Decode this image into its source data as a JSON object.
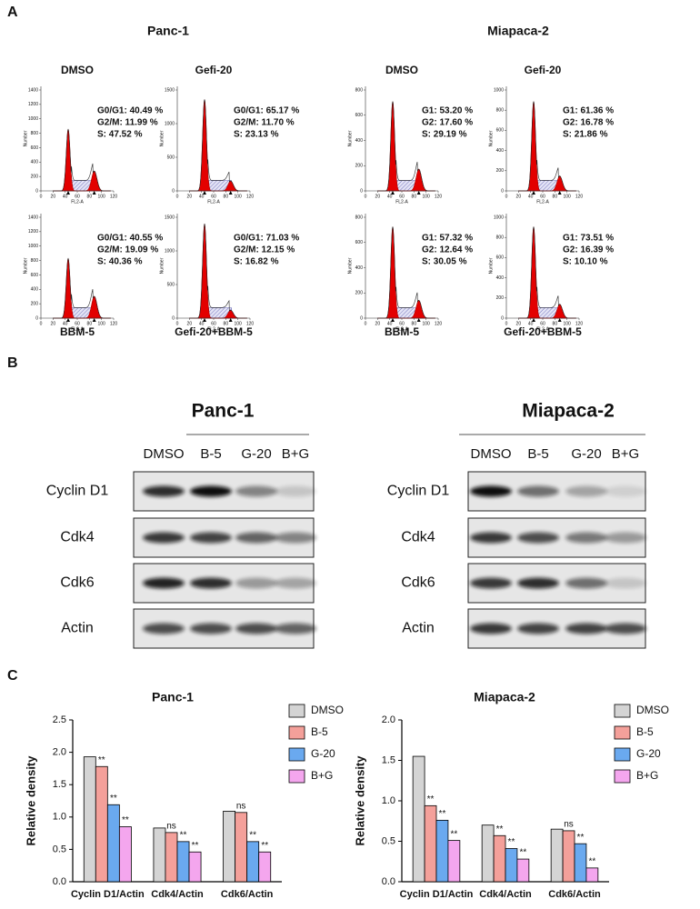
{
  "panel_labels": [
    "A",
    "B",
    "C"
  ],
  "flow": {
    "cell_lines": [
      "Panc-1",
      "Miapaca-2"
    ],
    "x_label": "FL2-A",
    "y_label": "Number",
    "xticks": [
      0,
      20,
      40,
      60,
      80,
      100,
      120
    ],
    "plots": [
      {
        "title": "DMSO",
        "stats": [
          "G0/G1: 40.49 %",
          "G2/M: 11.99 %",
          "S: 47.52 %"
        ],
        "yticks": [
          0,
          200,
          400,
          600,
          800,
          1000,
          1200,
          1400
        ]
      },
      {
        "title": "Gefi-20",
        "stats": [
          "G0/G1: 65.17 %",
          "G2/M: 11.70 %",
          "S: 23.13 %"
        ],
        "yticks": [
          0,
          500,
          1000,
          1500
        ]
      },
      {
        "title": "BBM-5",
        "stats": [
          "G0/G1: 40.55 %",
          "G2/M: 19.09 %",
          "S: 40.36 %"
        ],
        "yticks": [
          0,
          200,
          400,
          600,
          800,
          1000,
          1200,
          1400
        ]
      },
      {
        "title": "Gefi-20+BBM-5",
        "stats": [
          "G0/G1: 71.03 %",
          "G2/M: 12.15 %",
          "S: 16.82 %"
        ],
        "yticks": [
          0,
          500,
          1000,
          1500
        ]
      },
      {
        "title": "DMSO",
        "stats": [
          "G1: 53.20 %",
          "G2: 17.60 %",
          "S: 29.19 %"
        ],
        "yticks": [
          0,
          200,
          400,
          600,
          800
        ]
      },
      {
        "title": "Gefi-20",
        "stats": [
          "G1: 61.36 %",
          "G2: 16.78 %",
          "S: 21.86 %"
        ],
        "yticks": [
          0,
          200,
          400,
          600,
          800,
          1000
        ]
      },
      {
        "title": "BBM-5",
        "stats": [
          "G1: 57.32 %",
          "G2: 12.64 %",
          "S: 30.05 %"
        ],
        "yticks": [
          0,
          200,
          400,
          600,
          800
        ]
      },
      {
        "title": "Gefi-20+BBM-5",
        "stats": [
          "G1: 73.51 %",
          "G2: 16.39 %",
          "S: 10.10 %"
        ],
        "yticks": [
          0,
          200,
          400,
          600,
          800,
          1000
        ]
      }
    ]
  },
  "western": {
    "blots": [
      {
        "cell_line": "Panc-1",
        "lanes": [
          "DMSO",
          "B-5",
          "G-20",
          "B+G"
        ],
        "proteins": [
          "Cyclin D1",
          "Cdk4",
          "Cdk6",
          "Actin"
        ]
      },
      {
        "cell_line": "Miapaca-2",
        "lanes": [
          "DMSO",
          "B-5",
          "G-20",
          "B+G"
        ],
        "proteins": [
          "Cyclin D1",
          "Cdk4",
          "Cdk6",
          "Actin"
        ]
      }
    ]
  },
  "chart_data": [
    {
      "type": "bar",
      "title": "Panc-1",
      "y_label": "Relative density",
      "categories": [
        "Cyclin D1/Actin",
        "Cdk4/Actin",
        "Cdk6/Actin"
      ],
      "series": [
        {
          "name": "DMSO",
          "color": "#d4d4d4",
          "values": [
            1.93,
            0.83,
            1.09
          ]
        },
        {
          "name": "B-5",
          "color": "#f4a09a",
          "values": [
            1.78,
            0.76,
            1.07
          ],
          "significance": [
            "**",
            "ns",
            "ns"
          ]
        },
        {
          "name": "G-20",
          "color": "#6aa9ef",
          "values": [
            1.19,
            0.62,
            0.62
          ],
          "significance": [
            "**",
            "**",
            "**"
          ]
        },
        {
          "name": "B+G",
          "color": "#f4a6ee",
          "values": [
            0.85,
            0.46,
            0.46
          ],
          "significance": [
            "**",
            "**",
            "**"
          ]
        }
      ],
      "ylim": [
        0,
        2.5
      ],
      "yticks": [
        {
          "value": 0,
          "label": "0.0"
        },
        0.5,
        {
          "value": 1,
          "label": "1.0"
        },
        1.5,
        {
          "value": 2,
          "label": "2.0"
        },
        2.5
      ],
      "legend": "upper right"
    },
    {
      "type": "bar",
      "title": "Miapaca-2",
      "y_label": "Relative density",
      "categories": [
        "Cyclin D1/Actin",
        "Cdk4/Actin",
        "Cdk6/Actin"
      ],
      "series": [
        {
          "name": "DMSO",
          "color": "#d4d4d4",
          "values": [
            1.55,
            0.7,
            0.65
          ]
        },
        {
          "name": "B-5",
          "color": "#f4a09a",
          "values": [
            0.94,
            0.57,
            0.63
          ],
          "significance": [
            "**",
            "**",
            "ns"
          ]
        },
        {
          "name": "G-20",
          "color": "#6aa9ef",
          "values": [
            0.76,
            0.41,
            0.47
          ],
          "significance": [
            "**",
            "**",
            "**"
          ]
        },
        {
          "name": "B+G",
          "color": "#f4a6ee",
          "values": [
            0.51,
            0.28,
            0.17
          ],
          "significance": [
            "**",
            "**",
            "**"
          ]
        }
      ],
      "ylim": [
        0,
        2.0
      ],
      "yticks": [
        {
          "value": 0,
          "label": "0.0"
        },
        0.5,
        {
          "value": 1,
          "label": "1.0"
        },
        1.5,
        {
          "value": 2,
          "label": "2.0"
        }
      ],
      "legend": "upper right"
    }
  ]
}
